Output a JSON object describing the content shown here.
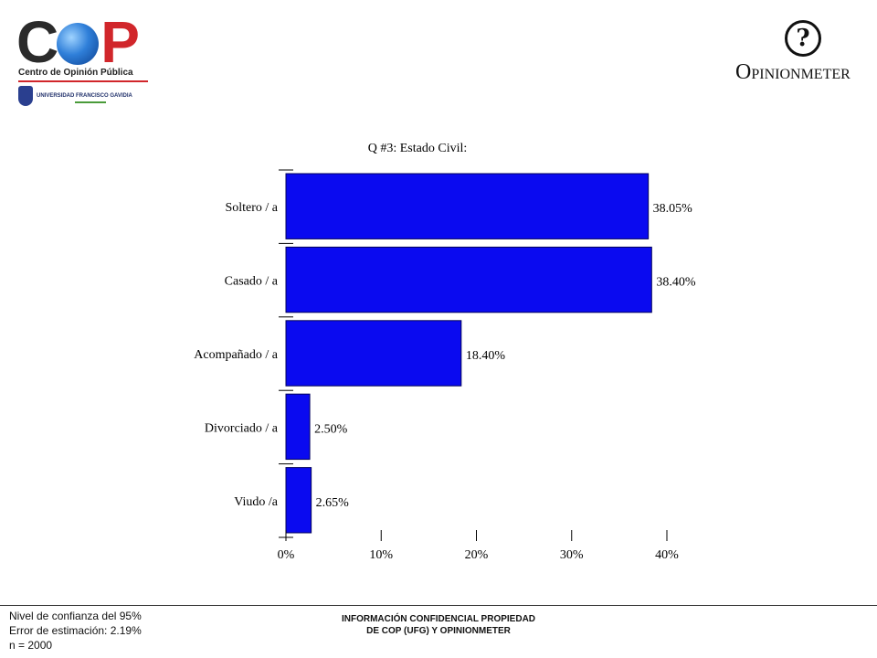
{
  "logos": {
    "cop": {
      "letters_left": "C",
      "letters_right": "P",
      "subtitle": "Centro de Opinión Pública",
      "university": "UNIVERSIDAD FRANCISCO GAVIDIA",
      "ufg_acronym": "UFG"
    },
    "opinionmeter": {
      "mark": "?",
      "name_first": "O",
      "name_rest": "PINIONMETER"
    }
  },
  "chart_data": {
    "type": "bar",
    "orientation": "horizontal",
    "title": "Q #3: Estado Civil:",
    "categories": [
      "Soltero / a",
      "Casado / a",
      "Acompañado / a",
      "Divorciado / a",
      "Viudo /a"
    ],
    "values": [
      38.05,
      38.4,
      18.4,
      2.5,
      2.65
    ],
    "data_labels": [
      "38.05%",
      "38.40%",
      "18.40%",
      "2.50%",
      "2.65%"
    ],
    "xlim": [
      0,
      40
    ],
    "xticks": [
      0,
      10,
      20,
      30,
      40
    ],
    "xtick_labels": [
      "0%",
      "10%",
      "20%",
      "30%",
      "40%"
    ],
    "bar_color": "#0a0af0",
    "grid": false,
    "xlabel": "",
    "ylabel": ""
  },
  "footer": {
    "confidence": "Nivel de confianza del 95%",
    "error": "Error de estimación: 2.19%",
    "sample": "n = 2000",
    "confidential_line1": "INFORMACIÓN CONFIDENCIAL PROPIEDAD",
    "confidential_line2": "DE COP (UFG) Y OPINIONMETER"
  }
}
